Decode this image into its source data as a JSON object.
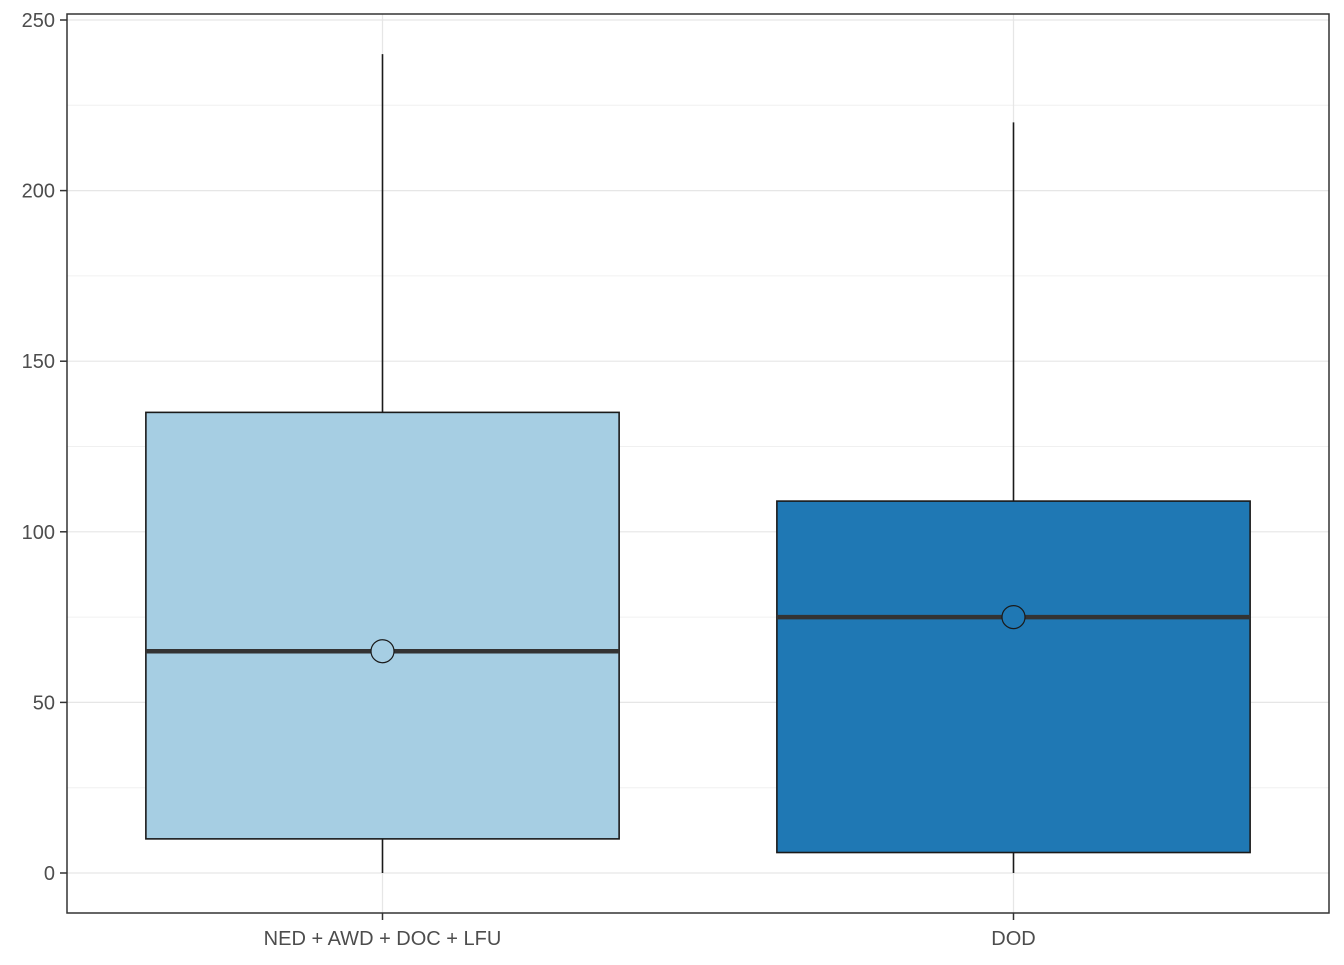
{
  "chart_data": {
    "type": "box",
    "title": "",
    "xlabel": "",
    "ylabel": "",
    "ylim": [
      -12,
      250
    ],
    "yticks": [
      0,
      50,
      100,
      150,
      200,
      250
    ],
    "grid": true,
    "legend": "none",
    "categories": [
      "NED + AWD + DOC + LFU",
      "DOD"
    ],
    "boxes": [
      {
        "category": "NED + AWD + DOC + LFU",
        "min": 0,
        "q1": 10,
        "median": 65,
        "q3": 135,
        "max": 240,
        "mean": 65,
        "color": "#a6cee3"
      },
      {
        "category": "DOD",
        "min": 0,
        "q1": 6,
        "median": 75,
        "q3": 109,
        "max": 220,
        "mean": 75,
        "color": "#1f78b4"
      }
    ]
  }
}
